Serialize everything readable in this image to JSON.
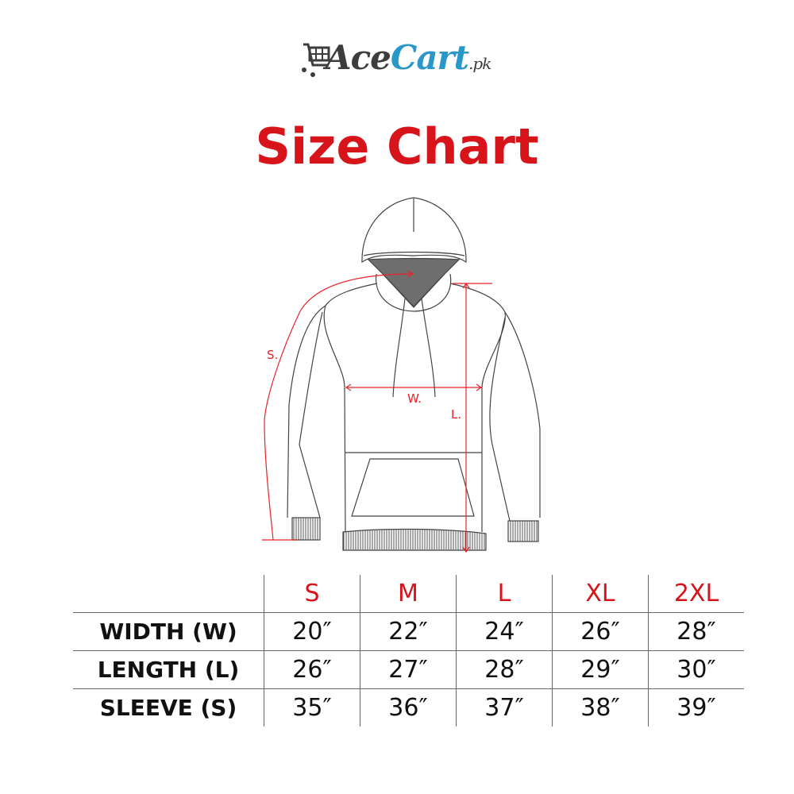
{
  "brand": {
    "logo_text_1": "Ace",
    "logo_text_2": "Cart",
    "logo_suffix": ".pk",
    "colors": {
      "primary": "#3d3d3d",
      "accent": "#2a97c9"
    }
  },
  "title": "Size Chart",
  "title_color": "#d7141a",
  "diagram": {
    "labels": {
      "sleeve": "S.",
      "width": "W.",
      "length": "L."
    },
    "measure_color": "#e8232a"
  },
  "table": {
    "sizes": [
      "S",
      "M",
      "L",
      "XL",
      "2XL"
    ],
    "rows": [
      {
        "label": "WIDTH (W)",
        "values": [
          "20″",
          "22″",
          "24″",
          "26″",
          "28″"
        ]
      },
      {
        "label": "LENGTH (L)",
        "values": [
          "26″",
          "27″",
          "28″",
          "29″",
          "30″"
        ]
      },
      {
        "label": "SLEEVE (S)",
        "values": [
          "35″",
          "36″",
          "37″",
          "38″",
          "39″"
        ]
      }
    ]
  }
}
